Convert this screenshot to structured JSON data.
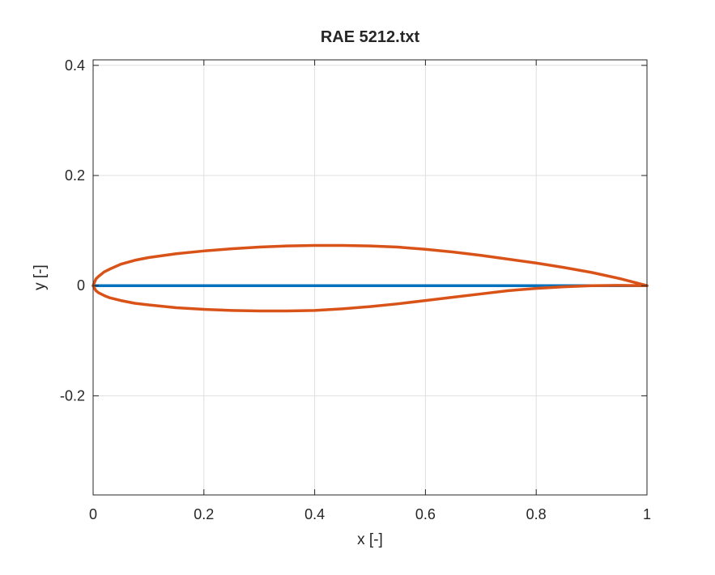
{
  "chart_data": {
    "type": "line",
    "title": "RAE 5212.txt",
    "xlabel": "x [-]",
    "ylabel": "y [-]",
    "xlim": [
      0,
      1
    ],
    "ylim": [
      -0.38,
      0.41
    ],
    "grid": true,
    "legend": "none",
    "xticks": [
      0,
      0.2,
      0.4,
      0.6,
      0.8,
      1
    ],
    "xtick_labels": [
      "0",
      "0.2",
      "0.4",
      "0.6",
      "0.8",
      "1"
    ],
    "yticks": [
      -0.2,
      0,
      0.2,
      0.4
    ],
    "ytick_labels": [
      "-0.2",
      "0",
      "0.2",
      "0.4"
    ],
    "series": [
      {
        "color": "#0072bd",
        "x": [
          0,
          1
        ],
        "y": [
          0,
          0
        ]
      },
      {
        "color": "#d95319",
        "x": [
          1.0,
          0.95,
          0.9,
          0.85,
          0.8,
          0.75,
          0.7,
          0.65,
          0.6,
          0.55,
          0.5,
          0.45,
          0.4,
          0.35,
          0.3,
          0.25,
          0.2,
          0.15,
          0.1,
          0.075,
          0.05,
          0.03,
          0.02,
          0.01,
          0.005,
          0.0,
          0.005,
          0.01,
          0.02,
          0.03,
          0.05,
          0.075,
          0.1,
          0.15,
          0.2,
          0.25,
          0.3,
          0.35,
          0.4,
          0.45,
          0.5,
          0.55,
          0.6,
          0.65,
          0.7,
          0.75,
          0.8,
          0.85,
          0.9,
          0.95,
          1.0
        ],
        "y": [
          0.0,
          0.013,
          0.024,
          0.033,
          0.041,
          0.048,
          0.055,
          0.061,
          0.066,
          0.07,
          0.072,
          0.073,
          0.073,
          0.072,
          0.07,
          0.067,
          0.063,
          0.058,
          0.051,
          0.046,
          0.039,
          0.03,
          0.025,
          0.017,
          0.012,
          0.0,
          -0.009,
          -0.013,
          -0.018,
          -0.022,
          -0.027,
          -0.032,
          -0.035,
          -0.04,
          -0.043,
          -0.045,
          -0.046,
          -0.046,
          -0.045,
          -0.042,
          -0.038,
          -0.033,
          -0.027,
          -0.021,
          -0.015,
          -0.009,
          -0.005,
          -0.002,
          0.0,
          0.0005,
          0.0
        ]
      }
    ]
  }
}
